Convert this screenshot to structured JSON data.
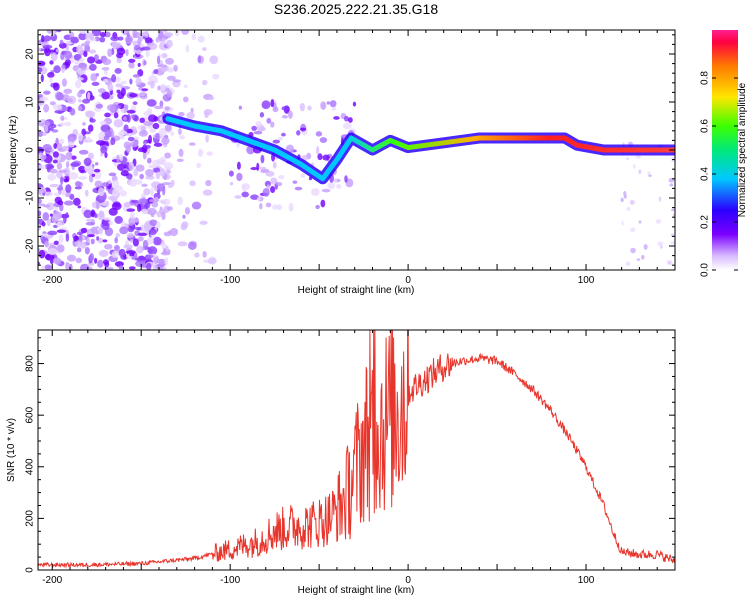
{
  "figure": {
    "title": "S236.2025.222.21.35.G18"
  },
  "chart_data": [
    {
      "type": "heatmap",
      "panel": "spectrogram",
      "xlabel": "Height of straight line (km)",
      "ylabel": "Frequency (Hz)",
      "xlim": [
        -208,
        150
      ],
      "ylim": [
        -25,
        25
      ],
      "xticks": [
        -200,
        -100,
        0,
        100
      ],
      "yticks": [
        20,
        10,
        0,
        -10,
        -20
      ],
      "colorbar": {
        "label": "Normalized spectral amplitude",
        "range": [
          0,
          1
        ],
        "ticks": [
          0.0,
          0.2,
          0.4,
          0.6,
          0.8
        ]
      },
      "ridge": [
        {
          "x": -135,
          "y": 6.5
        },
        {
          "x": -120,
          "y": 5
        },
        {
          "x": -105,
          "y": 4
        },
        {
          "x": -90,
          "y": 2
        },
        {
          "x": -75,
          "y": 0
        },
        {
          "x": -60,
          "y": -3
        },
        {
          "x": -48,
          "y": -6
        },
        {
          "x": -40,
          "y": -2
        },
        {
          "x": -32,
          "y": 2.5
        },
        {
          "x": -20,
          "y": 0
        },
        {
          "x": -10,
          "y": 2
        },
        {
          "x": 0,
          "y": 0.5
        },
        {
          "x": 10,
          "y": 1
        },
        {
          "x": 20,
          "y": 1.5
        },
        {
          "x": 40,
          "y": 2.5
        },
        {
          "x": 60,
          "y": 2.5
        },
        {
          "x": 88,
          "y": 2.5
        },
        {
          "x": 95,
          "y": 1
        },
        {
          "x": 110,
          "y": 0
        },
        {
          "x": 150,
          "y": 0
        }
      ]
    },
    {
      "type": "line",
      "panel": "snr",
      "xlabel": "Height of straight line (km)",
      "ylabel": "SNR (10 * v/v)",
      "xlim": [
        -208,
        150
      ],
      "ylim": [
        0,
        930
      ],
      "xticks": [
        -200,
        -100,
        0,
        100
      ],
      "yticks": [
        0,
        200,
        400,
        600,
        800
      ],
      "series": [
        {
          "name": "SNR",
          "color": "#e8352c",
          "x": [
            -208,
            -180,
            -150,
            -120,
            -100,
            -85,
            -75,
            -65,
            -55,
            -45,
            -40,
            -35,
            -30,
            -25,
            -20,
            -15,
            -10,
            -5,
            0,
            10,
            20,
            30,
            40,
            50,
            60,
            70,
            80,
            90,
            100,
            110,
            115,
            120,
            130,
            140,
            150
          ],
          "y": [
            20,
            20,
            25,
            45,
            80,
            110,
            150,
            170,
            175,
            200,
            230,
            280,
            380,
            480,
            560,
            560,
            600,
            640,
            690,
            740,
            790,
            810,
            820,
            810,
            760,
            700,
            620,
            520,
            400,
            250,
            150,
            70,
            60,
            60,
            35
          ]
        }
      ]
    }
  ]
}
